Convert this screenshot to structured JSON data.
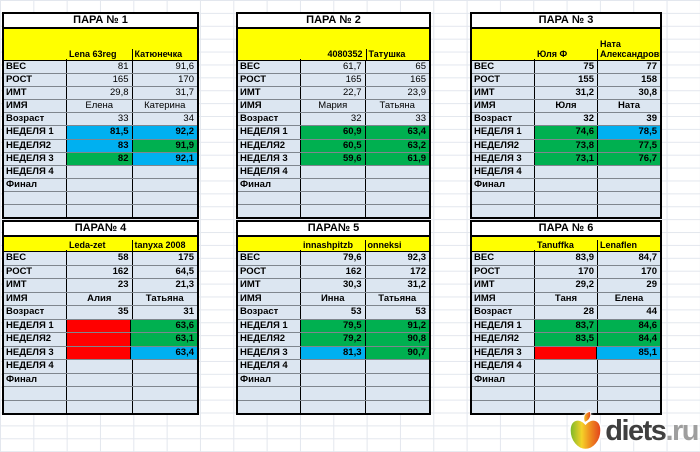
{
  "colors": {
    "green": "#00b050",
    "blue": "#00b0f0",
    "red": "#ff0000",
    "yellow": "#ffff00",
    "cellbg": "#dce6f1",
    "grid": "#e3e7ee",
    "logodark": "#3f3f3f",
    "logogray": "#9e9e9e"
  },
  "tables": [
    {
      "title": "ПАРА № 1",
      "header": [
        "Lena 63reg",
        "Катюнечка"
      ],
      "bold_values": false,
      "rows": [
        {
          "l": "ВЕС",
          "v1": "81",
          "v2": "91,6"
        },
        {
          "l": "РОСТ",
          "v1": "165",
          "v2": "170"
        },
        {
          "l": "ИМТ",
          "v1": "29,8",
          "v2": "31,7"
        },
        {
          "l": "ИМЯ",
          "v1": "Елена",
          "v2": "Катерина"
        },
        {
          "l": "Возраст",
          "v1": "33",
          "v2": "34"
        },
        {
          "l": "НЕДЕЛЯ 1",
          "v1": "81,5",
          "v2": "92,2",
          "c1": "blue",
          "c2": "blue"
        },
        {
          "l": "НЕДЕЛЯ2",
          "v1": "83",
          "v2": "91,9",
          "c1": "blue",
          "c2": "green"
        },
        {
          "l": "НЕДЕЛЯ 3",
          "v1": "82",
          "v2": "92,1",
          "c1": "green",
          "c2": "blue"
        },
        {
          "l": "НЕДЕЛЯ 4",
          "v1": "",
          "v2": ""
        },
        {
          "l": "Финал",
          "v1": "",
          "v2": ""
        },
        {
          "l": "",
          "v1": "",
          "v2": ""
        },
        {
          "l": "",
          "v1": "",
          "v2": ""
        }
      ]
    },
    {
      "title": "ПАРА № 2",
      "header": [
        "4080352",
        "Татушка"
      ],
      "bold_values": false,
      "rows": [
        {
          "l": "ВЕС",
          "v1": "61,7",
          "v2": "65"
        },
        {
          "l": "РОСТ",
          "v1": "165",
          "v2": "165"
        },
        {
          "l": "ИМТ",
          "v1": "22,7",
          "v2": "23,9"
        },
        {
          "l": "ИМЯ",
          "v1": "Мария",
          "v2": "Татьяна"
        },
        {
          "l": "Возраст",
          "v1": "32",
          "v2": "33"
        },
        {
          "l": "НЕДЕЛЯ 1",
          "v1": "60,9",
          "v2": "63,4",
          "c1": "green",
          "c2": "green"
        },
        {
          "l": "НЕДЕЛЯ2",
          "v1": "60,5",
          "v2": "63,2",
          "c1": "green",
          "c2": "green"
        },
        {
          "l": "НЕДЕЛЯ 3",
          "v1": "59,6",
          "v2": "61,9",
          "c1": "green",
          "c2": "green"
        },
        {
          "l": "НЕДЕЛЯ 4",
          "v1": "",
          "v2": ""
        },
        {
          "l": "Финал",
          "v1": "",
          "v2": ""
        },
        {
          "l": "",
          "v1": "",
          "v2": ""
        },
        {
          "l": "",
          "v1": "",
          "v2": ""
        }
      ]
    },
    {
      "title": "ПАРА № 3",
      "header": [
        "Юля Ф",
        "Ната Александровна"
      ],
      "bold_values": true,
      "rows": [
        {
          "l": "ВЕС",
          "v1": "75",
          "v2": "77"
        },
        {
          "l": "РОСТ",
          "v1": "155",
          "v2": "158"
        },
        {
          "l": "ИМТ",
          "v1": "31,2",
          "v2": "30,8"
        },
        {
          "l": "ИМЯ",
          "v1": "Юля",
          "v2": "Ната"
        },
        {
          "l": "Возраст",
          "v1": "32",
          "v2": "39"
        },
        {
          "l": "НЕДЕЛЯ 1",
          "v1": "74,6",
          "v2": "78,5",
          "c1": "green",
          "c2": "blue"
        },
        {
          "l": "НЕДЕЛЯ2",
          "v1": "73,8",
          "v2": "77,5",
          "c1": "green",
          "c2": "green"
        },
        {
          "l": "НЕДЕЛЯ 3",
          "v1": "73,1",
          "v2": "76,7",
          "c1": "green",
          "c2": "green"
        },
        {
          "l": "НЕДЕЛЯ 4",
          "v1": "",
          "v2": ""
        },
        {
          "l": "Финал",
          "v1": "",
          "v2": ""
        },
        {
          "l": "",
          "v1": "",
          "v2": ""
        },
        {
          "l": "",
          "v1": "",
          "v2": ""
        }
      ]
    },
    {
      "title": "ПАРА№ 4",
      "header": [
        "Leda-zet",
        "tanyxa 2008"
      ],
      "bold_values": true,
      "rows": [
        {
          "l": "ВЕС",
          "v1": "58",
          "v2": "175"
        },
        {
          "l": "РОСТ",
          "v1": "162",
          "v2": "64,5"
        },
        {
          "l": "ИМТ",
          "v1": "23",
          "v2": "21,3"
        },
        {
          "l": "ИМЯ",
          "v1": "Алия",
          "v2": "Татьяна"
        },
        {
          "l": "Возраст",
          "v1": "35",
          "v2": "31"
        },
        {
          "l": "НЕДЕЛЯ 1",
          "v1": "",
          "v2": "63,6",
          "c1": "red",
          "c2": "green"
        },
        {
          "l": "НЕДЕЛЯ2",
          "v1": "",
          "v2": "63,1",
          "c1": "red",
          "c2": "green"
        },
        {
          "l": "НЕДЕЛЯ 3",
          "v1": "",
          "v2": "63,4",
          "c1": "red",
          "c2": "blue"
        },
        {
          "l": "НЕДЕЛЯ 4",
          "v1": "",
          "v2": ""
        },
        {
          "l": "Финал",
          "v1": "",
          "v2": ""
        },
        {
          "l": "",
          "v1": "",
          "v2": ""
        },
        {
          "l": "",
          "v1": "",
          "v2": ""
        }
      ]
    },
    {
      "title": "ПАРА№ 5",
      "header": [
        "innashpitzb",
        "onneksi"
      ],
      "bold_values": true,
      "rows": [
        {
          "l": "ВЕС",
          "v1": "79,6",
          "v2": "92,3"
        },
        {
          "l": "РОСТ",
          "v1": "162",
          "v2": "172"
        },
        {
          "l": "ИМТ",
          "v1": "30,3",
          "v2": "31,2"
        },
        {
          "l": "ИМЯ",
          "v1": "Инна",
          "v2": "Татьяна"
        },
        {
          "l": "Возраст",
          "v1": "53",
          "v2": "53"
        },
        {
          "l": "НЕДЕЛЯ 1",
          "v1": "79,5",
          "v2": "91,2",
          "c1": "green",
          "c2": "green"
        },
        {
          "l": "НЕДЕЛЯ2",
          "v1": "79,2",
          "v2": "90,8",
          "c1": "green",
          "c2": "green"
        },
        {
          "l": "НЕДЕЛЯ 3",
          "v1": "81,3",
          "v2": "90,7",
          "c1": "blue",
          "c2": "green"
        },
        {
          "l": "НЕДЕЛЯ 4",
          "v1": "",
          "v2": ""
        },
        {
          "l": "Финал",
          "v1": "",
          "v2": ""
        },
        {
          "l": "",
          "v1": "",
          "v2": ""
        },
        {
          "l": "",
          "v1": "",
          "v2": ""
        }
      ]
    },
    {
      "title": "ПАРА № 6",
      "header": [
        "Tanuffka",
        "Lenaflen"
      ],
      "bold_values": true,
      "rows": [
        {
          "l": "ВЕС",
          "v1": "83,9",
          "v2": "84,7"
        },
        {
          "l": "РОСТ",
          "v1": "170",
          "v2": "170"
        },
        {
          "l": "ИМТ",
          "v1": "29,2",
          "v2": "29"
        },
        {
          "l": "ИМЯ",
          "v1": "Таня",
          "v2": "Елена"
        },
        {
          "l": "Возраст",
          "v1": "28",
          "v2": "44"
        },
        {
          "l": "НЕДЕЛЯ 1",
          "v1": "83,7",
          "v2": "84,6",
          "c1": "green",
          "c2": "green"
        },
        {
          "l": "НЕДЕЛЯ2",
          "v1": "83,5",
          "v2": "84,4",
          "c1": "green",
          "c2": "green"
        },
        {
          "l": "НЕДЕЛЯ 3",
          "v1": "",
          "v2": "85,1",
          "c1": "red",
          "c2": "blue"
        },
        {
          "l": "НЕДЕЛЯ 4",
          "v1": "",
          "v2": ""
        },
        {
          "l": "Финал",
          "v1": "",
          "v2": ""
        },
        {
          "l": "",
          "v1": "",
          "v2": ""
        },
        {
          "l": "",
          "v1": "",
          "v2": ""
        }
      ]
    }
  ],
  "logo": {
    "brand": "diets",
    "domain": ".ru"
  }
}
